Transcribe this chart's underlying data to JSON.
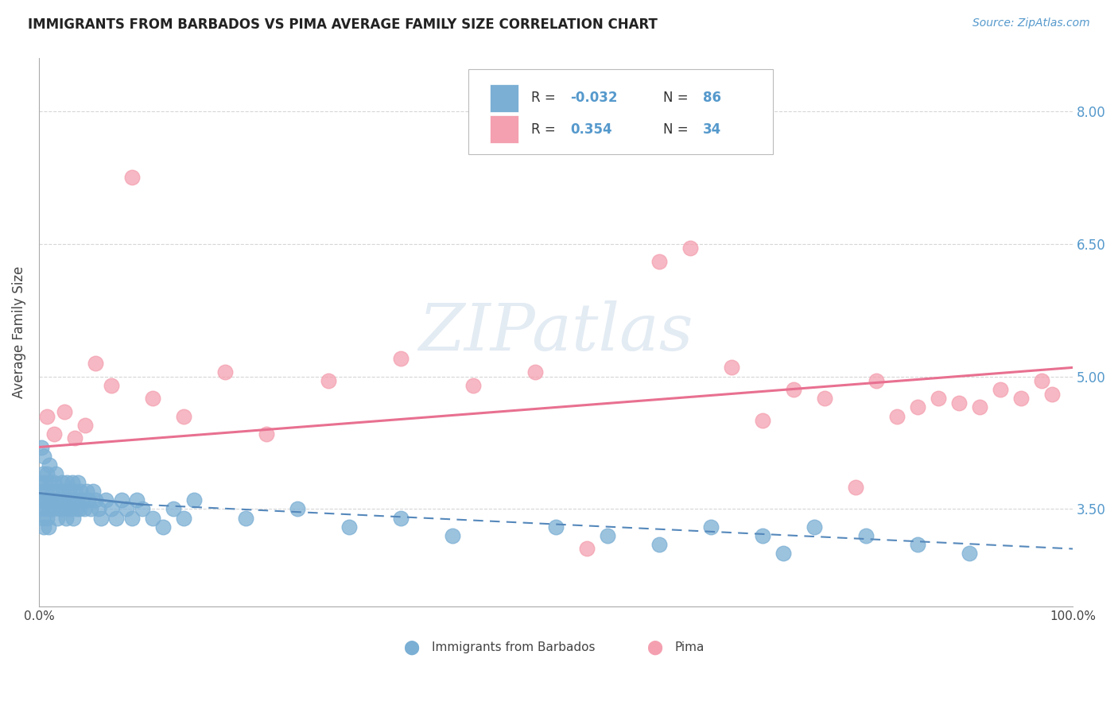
{
  "title": "IMMIGRANTS FROM BARBADOS VS PIMA AVERAGE FAMILY SIZE CORRELATION CHART",
  "source_text": "Source: ZipAtlas.com",
  "ylabel": "Average Family Size",
  "r_barbados": "-0.032",
  "n_barbados": "86",
  "r_pima": "0.354",
  "n_pima": "34",
  "y_ticks": [
    3.5,
    5.0,
    6.5,
    8.0
  ],
  "x_lim": [
    0,
    100
  ],
  "y_lim": [
    2.4,
    8.6
  ],
  "blue_scatter_color": "#7BAFD4",
  "pink_scatter_color": "#F4A0B0",
  "blue_line_color": "#5588BB",
  "pink_line_color": "#E87090",
  "tick_color": "#5599CC",
  "watermark_text": "ZIPatlas",
  "watermark_color": "#C8D8E8",
  "background": "#FFFFFF",
  "legend_box_color": "#DDDDDD",
  "title_color": "#222222",
  "source_color": "#5599CC",
  "ylabel_color": "#444444",
  "grid_color": "#CCCCCC",
  "barbados_x": [
    0.1,
    0.15,
    0.2,
    0.25,
    0.3,
    0.35,
    0.4,
    0.45,
    0.5,
    0.55,
    0.6,
    0.65,
    0.7,
    0.75,
    0.8,
    0.85,
    0.9,
    0.95,
    1.0,
    1.1,
    1.2,
    1.3,
    1.4,
    1.5,
    1.6,
    1.7,
    1.8,
    1.9,
    2.0,
    2.1,
    2.2,
    2.3,
    2.4,
    2.5,
    2.6,
    2.7,
    2.8,
    2.9,
    3.0,
    3.1,
    3.2,
    3.3,
    3.4,
    3.5,
    3.6,
    3.7,
    3.8,
    3.9,
    4.0,
    4.2,
    4.4,
    4.6,
    4.8,
    5.0,
    5.2,
    5.5,
    5.8,
    6.0,
    6.5,
    7.0,
    7.5,
    8.0,
    8.5,
    9.0,
    9.5,
    10.0,
    11.0,
    12.0,
    13.0,
    14.0,
    15.0,
    20.0,
    25.0,
    30.0,
    35.0,
    40.0,
    50.0,
    55.0,
    60.0,
    65.0,
    70.0,
    72.0,
    75.0,
    80.0,
    85.0,
    90.0
  ],
  "barbados_y": [
    3.8,
    3.6,
    4.2,
    3.5,
    3.7,
    3.4,
    3.9,
    3.3,
    4.1,
    3.6,
    3.8,
    3.5,
    3.7,
    3.9,
    3.4,
    3.6,
    3.5,
    3.3,
    4.0,
    3.8,
    3.6,
    3.7,
    3.5,
    3.8,
    3.9,
    3.6,
    3.4,
    3.7,
    3.5,
    3.6,
    3.8,
    3.5,
    3.7,
    3.6,
    3.4,
    3.8,
    3.5,
    3.7,
    3.6,
    3.5,
    3.8,
    3.4,
    3.6,
    3.7,
    3.5,
    3.6,
    3.8,
    3.5,
    3.7,
    3.6,
    3.5,
    3.7,
    3.6,
    3.5,
    3.7,
    3.6,
    3.5,
    3.4,
    3.6,
    3.5,
    3.4,
    3.6,
    3.5,
    3.4,
    3.6,
    3.5,
    3.4,
    3.3,
    3.5,
    3.4,
    3.6,
    3.4,
    3.5,
    3.3,
    3.4,
    3.2,
    3.3,
    3.2,
    3.1,
    3.3,
    3.2,
    3.0,
    3.3,
    3.2,
    3.1,
    3.0
  ],
  "pima_x": [
    0.8,
    1.5,
    2.5,
    3.5,
    4.5,
    5.5,
    7.0,
    9.0,
    11.0,
    14.0,
    18.0,
    22.0,
    28.0,
    35.0,
    42.0,
    48.0,
    53.0,
    60.0,
    63.0,
    67.0,
    70.0,
    73.0,
    76.0,
    79.0,
    81.0,
    83.0,
    85.0,
    87.0,
    89.0,
    91.0,
    93.0,
    95.0,
    97.0,
    98.0
  ],
  "pima_y": [
    4.55,
    4.35,
    4.6,
    4.3,
    4.45,
    5.15,
    4.9,
    7.25,
    4.75,
    4.55,
    5.05,
    4.35,
    4.95,
    5.2,
    4.9,
    5.05,
    3.05,
    6.3,
    6.45,
    5.1,
    4.5,
    4.85,
    4.75,
    3.75,
    4.95,
    4.55,
    4.65,
    4.75,
    4.7,
    4.65,
    4.85,
    4.75,
    4.95,
    4.8
  ],
  "blue_line_x": [
    0,
    10,
    100
  ],
  "blue_line_y": [
    3.68,
    3.55,
    3.05
  ],
  "pink_line_x": [
    0,
    100
  ],
  "pink_line_y": [
    4.2,
    5.1
  ],
  "blue_solid_end": 10
}
